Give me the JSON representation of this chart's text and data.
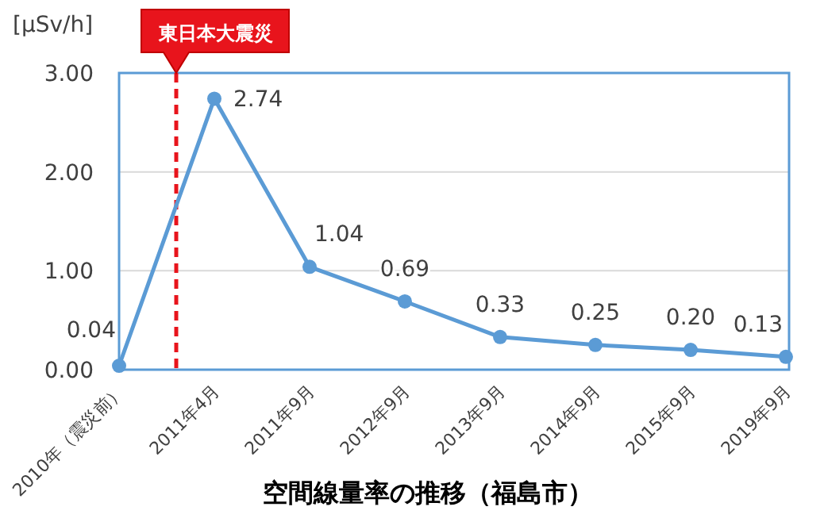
{
  "chart_data": {
    "type": "line",
    "title": "空間線量率の推移（福島市）",
    "ylabel": "[μSv/h]",
    "categories": [
      "2010年（震災前）",
      "2011年4月",
      "2011年9月",
      "2012年9月",
      "2013年9月",
      "2014年9月",
      "2015年9月",
      "2019年9月"
    ],
    "series": [
      {
        "color": "#5b9bd5",
        "values": [
          0.04,
          2.74,
          1.04,
          0.69,
          0.33,
          0.25,
          0.2,
          0.13
        ],
        "value_labels": [
          "0.04",
          "2.74",
          "1.04",
          "0.69",
          "0.33",
          "0.25",
          "0.20",
          "0.13"
        ]
      }
    ],
    "ylim": [
      0,
      3
    ],
    "yticks": [
      {
        "value": 0,
        "label": "0.00"
      },
      {
        "value": 1,
        "label": "1.00"
      },
      {
        "value": 2,
        "label": "2.00"
      },
      {
        "value": 3,
        "label": "3.00"
      }
    ],
    "ref_lines": [
      {
        "axis": "x",
        "value": "2011年4月",
        "label": "東日本大震災",
        "color": "#e8141c",
        "line_style": "dashed"
      }
    ],
    "grid": "y",
    "marker": "circle",
    "line_style": "solid"
  }
}
